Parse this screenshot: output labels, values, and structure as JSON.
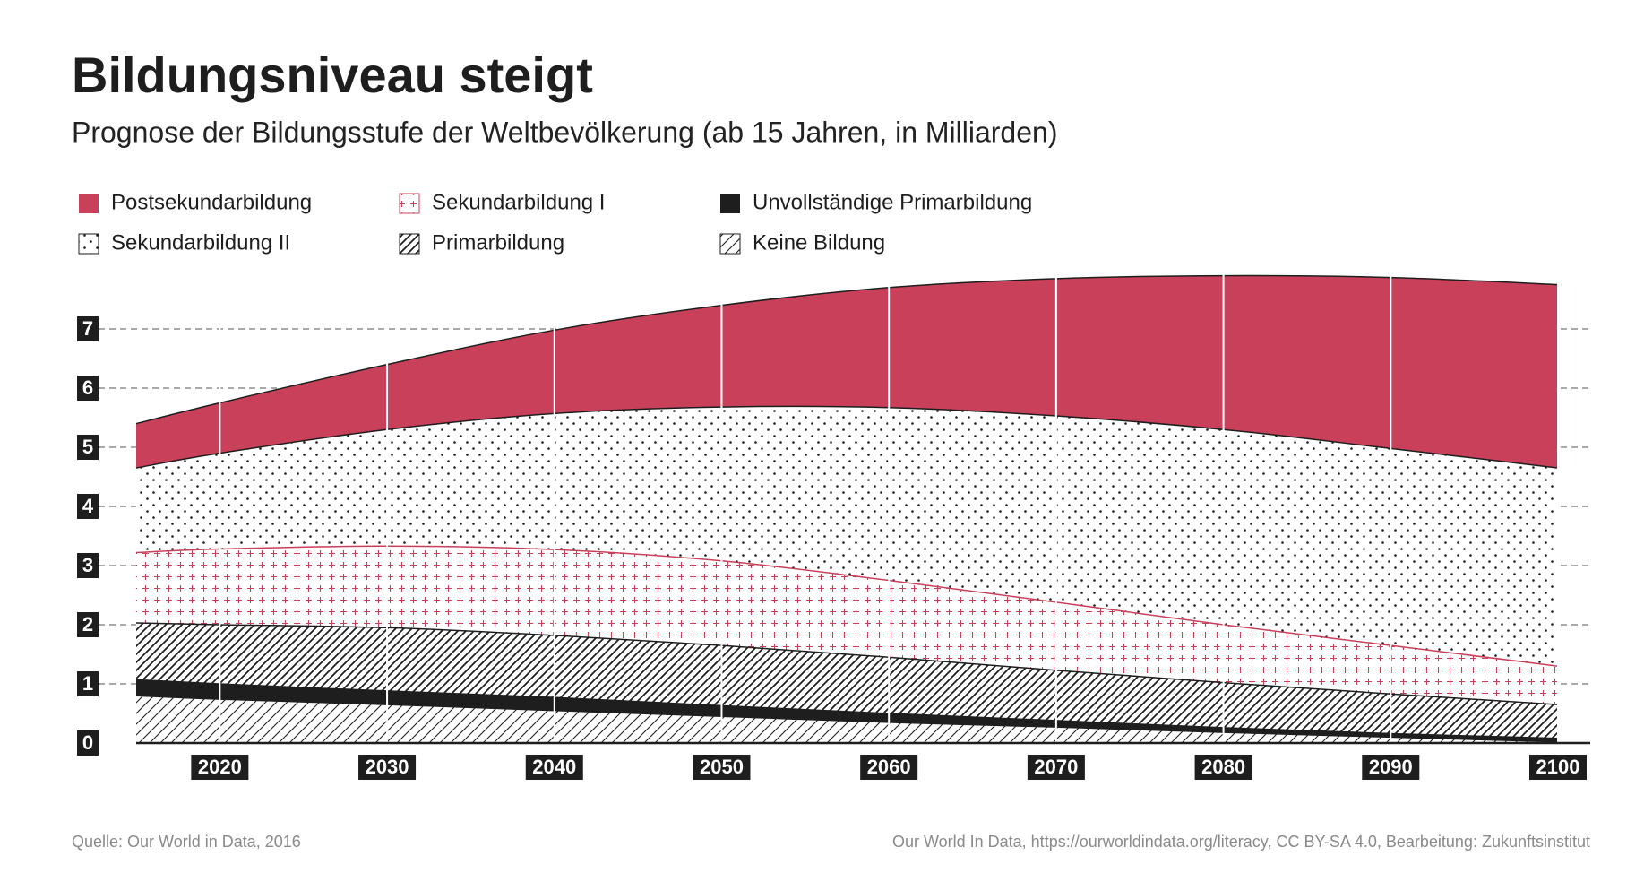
{
  "chart_data": {
    "type": "stacked_area",
    "title": "Bildungsniveau steigt",
    "subtitle": "Prognose der Bildungsstufe der Weltbevölkerung (ab 15 Jahren, in Milliarden)",
    "x": [
      2015,
      2020,
      2030,
      2040,
      2050,
      2060,
      2070,
      2080,
      2090,
      2100
    ],
    "series": [
      {
        "name": "Keine Bildung",
        "color": "#1e1e1e",
        "pattern": "hatch-light",
        "values": [
          0.8,
          0.74,
          0.65,
          0.55,
          0.45,
          0.35,
          0.27,
          0.18,
          0.1,
          0.02
        ]
      },
      {
        "name": "Unvollständige Primarbildung",
        "color": "#1e1e1e",
        "pattern": "solid",
        "values": [
          0.27,
          0.26,
          0.23,
          0.22,
          0.18,
          0.15,
          0.11,
          0.08,
          0.06,
          0.06
        ]
      },
      {
        "name": "Primarbildung",
        "color": "#1e1e1e",
        "pattern": "hatch",
        "values": [
          0.96,
          1.0,
          1.07,
          1.05,
          1.02,
          0.95,
          0.85,
          0.76,
          0.67,
          0.57
        ]
      },
      {
        "name": "Sekundarbildung I",
        "color": "#c9405a",
        "pattern": "cross",
        "values": [
          1.19,
          1.28,
          1.38,
          1.45,
          1.43,
          1.3,
          1.15,
          0.98,
          0.82,
          0.65
        ]
      },
      {
        "name": "Sekundarbildung II",
        "color": "#1e1e1e",
        "pattern": "dots",
        "values": [
          1.43,
          1.62,
          1.97,
          2.3,
          2.6,
          2.92,
          3.15,
          3.3,
          3.33,
          3.35
        ]
      },
      {
        "name": "Postsekundarbildung",
        "color": "#c9405a",
        "pattern": "solid",
        "values": [
          0.75,
          0.85,
          1.1,
          1.41,
          1.72,
          2.03,
          2.32,
          2.6,
          2.89,
          3.1
        ]
      }
    ],
    "xlim": [
      2015,
      2100
    ],
    "xticks": [
      2020,
      2030,
      2040,
      2050,
      2060,
      2070,
      2080,
      2090,
      2100
    ],
    "ylim": [
      0,
      8
    ],
    "yticks": [
      0,
      1,
      2,
      3,
      4,
      5,
      6,
      7
    ],
    "grid": true,
    "source": "Quelle: Our World in Data, 2016",
    "credit": "Our World In Data, https://ourworldindata.org/literacy, CC BY-SA 4.0, Bearbeitung: Zukunftsinstitut"
  }
}
